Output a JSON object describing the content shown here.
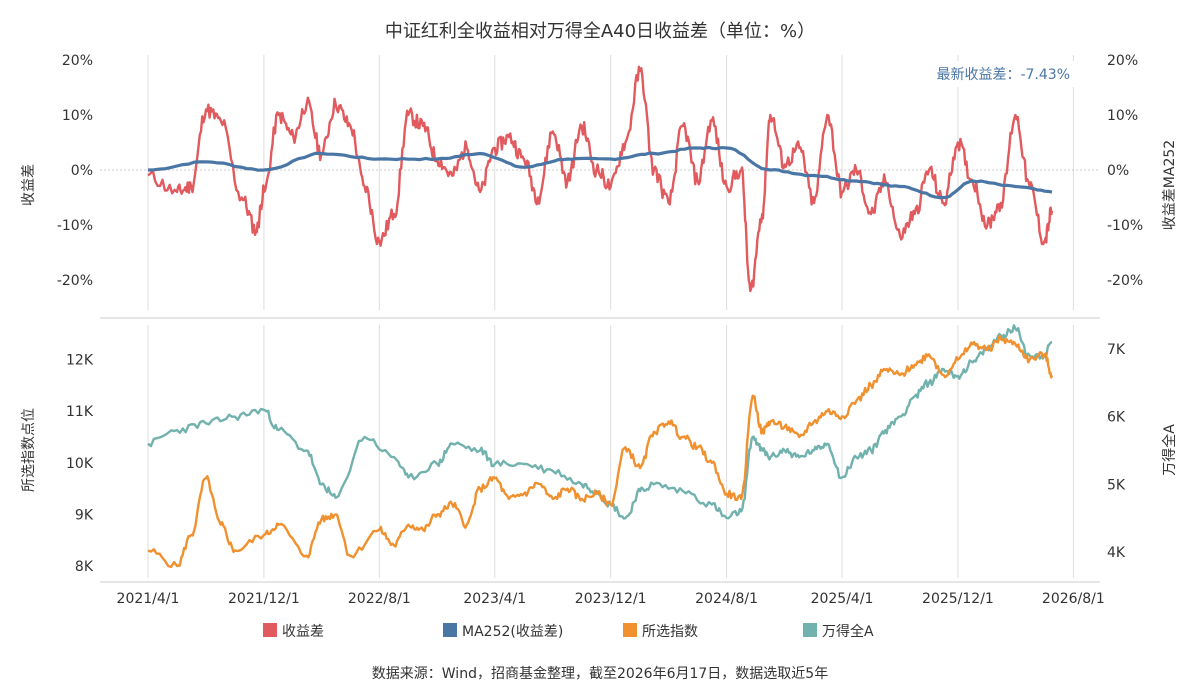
{
  "title": "中证红利全收益相对万得全A40日收益差（单位：%）",
  "footer": "数据来源：Wind，招商基金整理，截至2026年6月17日，数据选取近5年",
  "latest_annotation": "最新收益差：-7.43%",
  "colors": {
    "spread": "#e05a5e",
    "ma252": "#4a76a6",
    "selected_index": "#f0902e",
    "wind_a": "#72b2ae",
    "grid": "#dddddd",
    "annotation": "#4a76a6"
  },
  "chart_data": [
    {
      "type": "line",
      "panel": "top",
      "ylabel_left": "收益差",
      "ylabel_right": "收益差MA252",
      "y_ticks_left": [
        "20%",
        "10%",
        "0%",
        "-10%",
        "-20%"
      ],
      "y_ticks_right": [
        "20%",
        "10%",
        "0%",
        "-10%",
        "-20%"
      ],
      "ylim": [
        -25,
        21
      ],
      "series": [
        {
          "name": "收益差",
          "x": [
            "2021/4/1",
            "2021/6/1",
            "2021/7/1",
            "2021/8/1",
            "2021/9/1",
            "2021/10/15",
            "2021/11/15",
            "2021/12/1",
            "2022/1/1",
            "2022/2/1",
            "2022/3/1",
            "2022/4/1",
            "2022/5/1",
            "2022/6/1",
            "2022/7/1",
            "2022/8/1",
            "2022/9/1",
            "2022/10/1",
            "2022/11/1",
            "2022/12/1",
            "2023/1/1",
            "2023/2/1",
            "2023/3/1",
            "2023/4/1",
            "2023/5/1",
            "2023/6/1",
            "2023/7/1",
            "2023/8/1",
            "2023/9/1",
            "2023/10/1",
            "2023/11/1",
            "2023/12/1",
            "2024/1/1",
            "2024/2/1",
            "2024/3/1",
            "2024/4/1",
            "2024/5/1",
            "2024/6/1",
            "2024/7/1",
            "2024/8/1",
            "2024/9/1",
            "2024/9/20",
            "2024/10/15",
            "2024/11/1",
            "2024/12/1",
            "2025/1/1",
            "2025/2/1",
            "2025/3/1",
            "2025/4/1",
            "2025/5/1",
            "2025/6/1",
            "2025/7/1",
            "2025/8/1",
            "2025/9/1",
            "2025/10/1",
            "2025/11/1",
            "2025/12/1",
            "2026/1/1",
            "2026/2/1",
            "2026/3/1",
            "2026/4/1",
            "2026/5/1",
            "2026/6/1",
            "2026/6/17"
          ],
          "values": [
            -1,
            -4,
            -3,
            11,
            9,
            -5,
            -11,
            -4,
            10,
            6,
            12,
            3,
            12,
            8,
            -3,
            -13,
            -8,
            10,
            8,
            2,
            -1,
            4,
            -4,
            4,
            6,
            2,
            -5,
            7,
            -2,
            8,
            0,
            -3,
            5,
            18,
            0,
            -6,
            8,
            -2,
            9,
            -3,
            0,
            -22,
            -8,
            10,
            1,
            4,
            -6,
            10,
            -4,
            0,
            -8,
            -2,
            -12,
            -8,
            0,
            -6,
            5,
            -2,
            -10,
            -6,
            10,
            -3,
            -13,
            -7.43
          ]
        },
        {
          "name": "MA252(收益差)",
          "x": [
            "2021/4/1",
            "2021/8/1",
            "2021/12/1",
            "2022/4/1",
            "2022/8/1",
            "2022/12/1",
            "2023/3/1",
            "2023/6/1",
            "2023/9/1",
            "2023/12/1",
            "2024/3/1",
            "2024/6/1",
            "2024/8/1",
            "2024/11/1",
            "2025/2/1",
            "2025/5/1",
            "2025/8/1",
            "2025/11/1",
            "2026/1/1",
            "2026/4/1",
            "2026/6/17"
          ],
          "values": [
            0,
            1.5,
            0,
            3,
            2,
            2,
            3,
            0.5,
            2,
            2,
            3,
            4,
            4,
            0,
            -1,
            -2,
            -3,
            -5,
            -2,
            -3,
            -4
          ]
        }
      ]
    },
    {
      "type": "line",
      "panel": "bottom",
      "ylabel_left": "所选指数点位",
      "ylabel_right": "万得全A",
      "y_ticks_left": [
        "12K",
        "11K",
        "10K",
        "9K",
        "8K"
      ],
      "y_ticks_right": [
        "7K",
        "6K",
        "5K",
        "4K"
      ],
      "ylim_left": [
        7700,
        12600
      ],
      "ylim_right": [
        3700,
        7500
      ],
      "x_ticks": [
        "2021/4/1",
        "2021/12/1",
        "2022/8/1",
        "2023/4/1",
        "2023/12/1",
        "2024/8/1",
        "2025/4/1",
        "2025/12/1",
        "2026/8/1"
      ],
      "series": [
        {
          "name": "所选指数",
          "axis": "left",
          "x": [
            "2021/4/1",
            "2021/6/1",
            "2021/7/1",
            "2021/8/1",
            "2021/9/1",
            "2021/10/1",
            "2021/12/1",
            "2022/1/1",
            "2022/3/1",
            "2022/4/1",
            "2022/5/1",
            "2022/6/1",
            "2022/8/1",
            "2022/9/1",
            "2022/10/1",
            "2022/11/1",
            "2022/12/1",
            "2023/1/1",
            "2023/2/1",
            "2023/3/1",
            "2023/4/1",
            "2023/5/1",
            "2023/6/1",
            "2023/7/1",
            "2023/8/1",
            "2023/9/1",
            "2023/10/1",
            "2023/11/1",
            "2023/12/1",
            "2024/1/1",
            "2024/2/1",
            "2024/3/1",
            "2024/4/1",
            "2024/5/1",
            "2024/6/1",
            "2024/7/1",
            "2024/8/1",
            "2024/9/1",
            "2024/9/25",
            "2024/10/15",
            "2024/11/1",
            "2024/12/1",
            "2025/1/1",
            "2025/2/1",
            "2025/3/1",
            "2025/4/1",
            "2025/5/1",
            "2025/6/1",
            "2025/7/1",
            "2025/8/1",
            "2025/9/1",
            "2025/10/1",
            "2025/11/1",
            "2025/12/1",
            "2026/1/1",
            "2026/2/1",
            "2026/3/1",
            "2026/4/1",
            "2026/5/1",
            "2026/6/1",
            "2026/6/17"
          ],
          "values": [
            8300,
            8000,
            8600,
            9700,
            8800,
            8300,
            8600,
            8800,
            8200,
            8900,
            9000,
            8200,
            8700,
            8400,
            8800,
            8700,
            9000,
            9200,
            8800,
            9500,
            9700,
            9300,
            9400,
            9600,
            9300,
            9500,
            9300,
            9400,
            9200,
            10300,
            9900,
            10600,
            10800,
            10500,
            10300,
            10000,
            9400,
            9300,
            11300,
            10600,
            10800,
            10700,
            10500,
            10800,
            11000,
            10900,
            11200,
            11500,
            11800,
            11700,
            11900,
            12100,
            11700,
            12000,
            12300,
            12200,
            12400,
            12300,
            12000,
            12100,
            11700
          ]
        },
        {
          "name": "万得全A",
          "axis": "right",
          "x": [
            "2021/4/1",
            "2021/6/1",
            "2021/8/1",
            "2021/10/1",
            "2021/12/1",
            "2022/1/1",
            "2022/3/1",
            "2022/4/1",
            "2022/5/1",
            "2022/7/1",
            "2022/9/1",
            "2022/10/1",
            "2022/12/1",
            "2023/1/1",
            "2023/3/1",
            "2023/4/1",
            "2023/6/1",
            "2023/8/1",
            "2023/10/1",
            "2023/11/1",
            "2023/12/1",
            "2024/1/1",
            "2024/2/1",
            "2024/3/1",
            "2024/5/1",
            "2024/7/1",
            "2024/8/1",
            "2024/9/1",
            "2024/9/25",
            "2024/10/15",
            "2024/11/1",
            "2024/12/1",
            "2025/1/1",
            "2025/2/1",
            "2025/3/1",
            "2025/4/1",
            "2025/5/1",
            "2025/6/1",
            "2025/7/1",
            "2025/8/1",
            "2025/9/1",
            "2025/10/1",
            "2025/11/1",
            "2025/12/1",
            "2026/1/1",
            "2026/2/1",
            "2026/3/1",
            "2026/4/1",
            "2026/5/1",
            "2026/6/1",
            "2026/6/17"
          ],
          "values": [
            5600,
            5800,
            5900,
            6000,
            6100,
            5800,
            5500,
            5000,
            4800,
            5700,
            5400,
            5100,
            5300,
            5600,
            5500,
            5300,
            5300,
            5200,
            5000,
            4900,
            4700,
            4500,
            4900,
            5000,
            4900,
            4700,
            4500,
            4600,
            5700,
            5500,
            5400,
            5500,
            5400,
            5500,
            5600,
            5100,
            5400,
            5500,
            5800,
            6000,
            6300,
            6500,
            6700,
            6600,
            6800,
            7000,
            7200,
            7300,
            6900,
            6900,
            7100
          ]
        }
      ]
    }
  ]
}
